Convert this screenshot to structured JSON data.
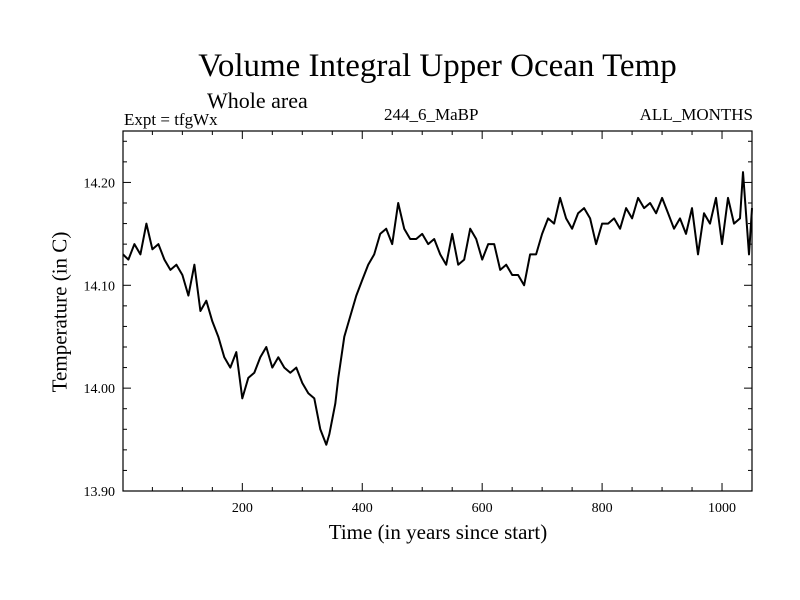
{
  "chart_data": {
    "type": "line",
    "title": "Volume Integral Upper Ocean Temp",
    "subtitle": "Whole area",
    "experiment": "Expt = tfgWx",
    "run_label": "244_6_MaBP",
    "months_label": "ALL_MONTHS",
    "xlabel": "Time (in years since start)",
    "ylabel": "Temperature (in C)",
    "xlim": [
      1,
      1050
    ],
    "ylim": [
      13.9,
      14.25
    ],
    "xticks": [
      200,
      400,
      600,
      800,
      1000
    ],
    "xtick_labels": [
      "200",
      "400",
      "600",
      "800",
      "1000"
    ],
    "yticks": [
      13.9,
      14.0,
      14.1,
      14.2
    ],
    "ytick_labels": [
      "13.90",
      "14.00",
      "14.10",
      "14.20"
    ],
    "series": [
      {
        "name": "Temperature",
        "color": "#000000",
        "x": [
          1,
          10,
          20,
          30,
          40,
          50,
          60,
          70,
          80,
          90,
          100,
          110,
          120,
          130,
          140,
          150,
          160,
          170,
          180,
          190,
          200,
          210,
          220,
          230,
          240,
          250,
          260,
          270,
          280,
          290,
          300,
          310,
          320,
          330,
          340,
          345,
          350,
          355,
          360,
          365,
          370,
          375,
          380,
          390,
          400,
          410,
          420,
          430,
          440,
          450,
          460,
          470,
          480,
          490,
          500,
          510,
          520,
          530,
          540,
          550,
          560,
          570,
          580,
          590,
          600,
          610,
          620,
          630,
          640,
          650,
          660,
          670,
          680,
          690,
          700,
          710,
          720,
          730,
          740,
          750,
          760,
          770,
          780,
          790,
          800,
          810,
          820,
          830,
          840,
          850,
          860,
          870,
          880,
          890,
          900,
          910,
          920,
          930,
          940,
          950,
          960,
          970,
          980,
          990,
          1000,
          1010,
          1020,
          1030,
          1035,
          1040,
          1045,
          1050
        ],
        "y": [
          14.13,
          14.125,
          14.14,
          14.13,
          14.16,
          14.135,
          14.14,
          14.125,
          14.115,
          14.12,
          14.11,
          14.09,
          14.12,
          14.075,
          14.085,
          14.065,
          14.05,
          14.03,
          14.02,
          14.035,
          13.99,
          14.01,
          14.015,
          14.03,
          14.04,
          14.02,
          14.03,
          14.02,
          14.015,
          14.02,
          14.005,
          13.995,
          13.99,
          13.96,
          13.945,
          13.955,
          13.97,
          13.985,
          14.01,
          14.03,
          14.05,
          14.06,
          14.07,
          14.09,
          14.105,
          14.12,
          14.13,
          14.15,
          14.155,
          14.14,
          14.18,
          14.155,
          14.145,
          14.145,
          14.15,
          14.14,
          14.145,
          14.13,
          14.12,
          14.15,
          14.12,
          14.125,
          14.155,
          14.145,
          14.125,
          14.14,
          14.14,
          14.115,
          14.12,
          14.11,
          14.11,
          14.1,
          14.13,
          14.13,
          14.15,
          14.165,
          14.16,
          14.185,
          14.165,
          14.155,
          14.17,
          14.175,
          14.165,
          14.14,
          14.16,
          14.16,
          14.165,
          14.155,
          14.175,
          14.165,
          14.185,
          14.175,
          14.18,
          14.17,
          14.185,
          14.17,
          14.155,
          14.165,
          14.15,
          14.175,
          14.13,
          14.17,
          14.16,
          14.185,
          14.14,
          14.185,
          14.16,
          14.165,
          14.21,
          14.17,
          14.13,
          14.175
        ]
      }
    ]
  }
}
